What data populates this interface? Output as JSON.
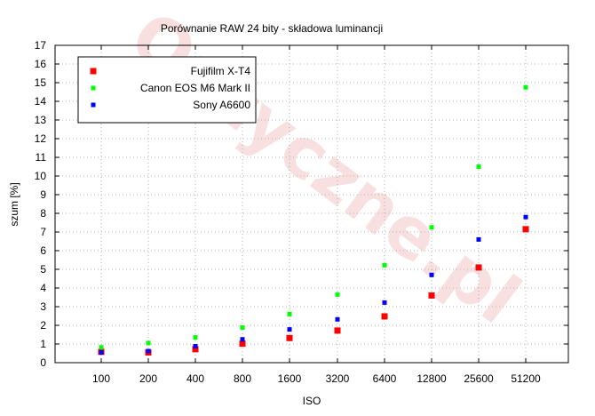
{
  "chart_data": {
    "type": "scatter",
    "title": "Porównanie RAW 24 bity - składowa luminancji",
    "xlabel": "ISO",
    "ylabel": "szum [%]",
    "categories": [
      "100",
      "200",
      "400",
      "800",
      "1600",
      "3200",
      "6400",
      "12800",
      "25600",
      "51200"
    ],
    "ylim": [
      0,
      17
    ],
    "yticks": [
      0,
      1,
      2,
      3,
      4,
      5,
      6,
      7,
      8,
      9,
      10,
      11,
      12,
      13,
      14,
      15,
      16,
      17
    ],
    "grid": true,
    "legend_position": "top-left",
    "watermark": "Optyczne.pl",
    "series": [
      {
        "name": "Fujifilm X-T4",
        "color": "#ff0000",
        "values": [
          0.58,
          0.55,
          0.72,
          1.02,
          1.32,
          1.72,
          2.48,
          3.6,
          5.1,
          7.15
        ]
      },
      {
        "name": "Canon EOS M6 Mark II",
        "color": "#00ff00",
        "values": [
          0.82,
          1.05,
          1.35,
          1.88,
          2.6,
          3.65,
          5.22,
          7.25,
          10.5,
          14.75
        ]
      },
      {
        "name": "Sony A6600",
        "color": "#0000ff",
        "values": [
          0.55,
          0.62,
          0.88,
          1.25,
          1.78,
          2.32,
          3.22,
          4.7,
          6.6,
          7.8
        ]
      }
    ]
  }
}
